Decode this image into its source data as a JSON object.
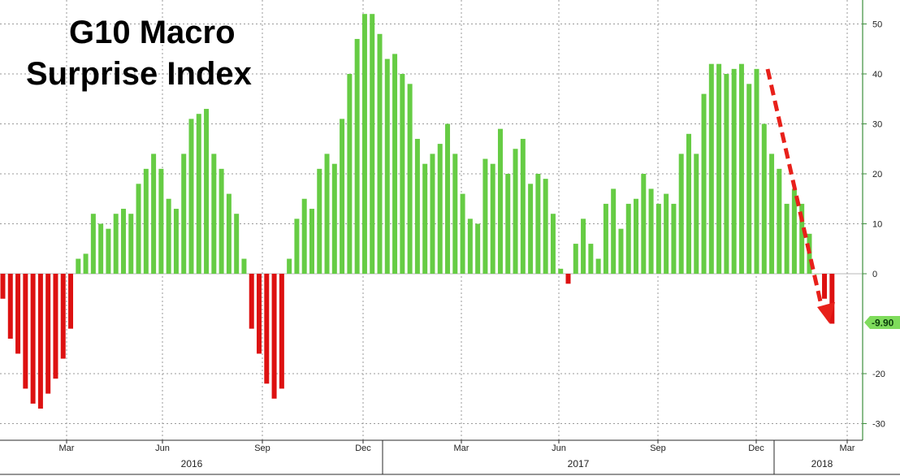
{
  "chart_data": {
    "type": "bar",
    "title_lines": [
      "G10 Macro",
      "Surprise Index"
    ],
    "xlabel": "",
    "ylabel": "",
    "ylim": [
      -35,
      55
    ],
    "y_ticks": [
      -30,
      -20,
      0,
      10,
      20,
      30,
      40,
      50
    ],
    "x_month_labels": [
      "Mar",
      "Jun",
      "Sep",
      "Dec",
      "Mar",
      "Jun",
      "Sep",
      "Dec",
      "Mar"
    ],
    "x_year_labels": [
      "2016",
      "2017",
      "2018"
    ],
    "last_value_label": "-9.90",
    "positive_color": "#66cc44",
    "negative_color": "#dd1111",
    "last_value_tag_color": "#7fdc5c",
    "arrow_color": "#e8201a",
    "values": [
      -5,
      -13,
      -16,
      -23,
      -26,
      -27,
      -24,
      -21,
      -17,
      -11,
      3,
      4,
      12,
      10,
      9,
      12,
      13,
      12,
      18,
      21,
      24,
      21,
      15,
      13,
      24,
      31,
      32,
      33,
      24,
      21,
      16,
      12,
      3,
      -11,
      -16,
      -22,
      -25,
      -23,
      3,
      11,
      15,
      13,
      21,
      24,
      22,
      31,
      40,
      47,
      52,
      52,
      48,
      43,
      44,
      40,
      38,
      27,
      22,
      24,
      26,
      30,
      24,
      16,
      11,
      10,
      23,
      22,
      29,
      20,
      25,
      27,
      18,
      20,
      19,
      12,
      1,
      -2,
      6,
      11,
      6,
      3,
      14,
      17,
      9,
      14,
      15,
      20,
      17,
      14,
      16,
      14,
      24,
      28,
      24,
      36,
      42,
      42,
      40,
      41,
      42,
      38,
      41,
      30,
      24,
      21,
      14,
      17,
      14,
      8,
      0,
      -5,
      -10
    ]
  }
}
